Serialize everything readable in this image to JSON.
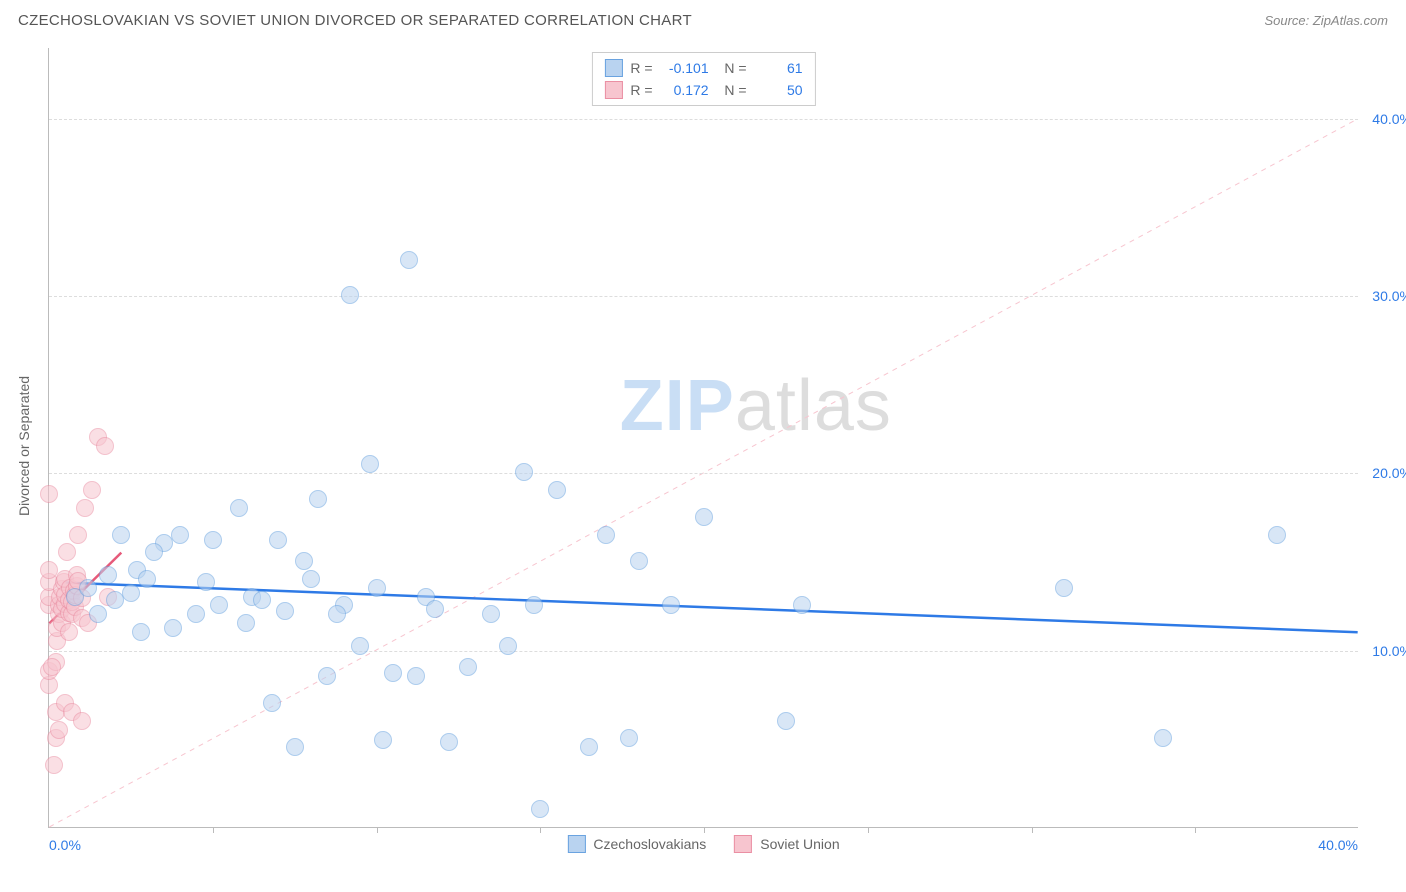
{
  "header": {
    "title": "CZECHOSLOVAKIAN VS SOVIET UNION DIVORCED OR SEPARATED CORRELATION CHART",
    "source": "Source: ZipAtlas.com"
  },
  "chart": {
    "type": "scatter",
    "ylabel": "Divorced or Separated",
    "xlim": [
      0,
      40
    ],
    "ylim": [
      0,
      44
    ],
    "xtick_left_label": "0.0%",
    "xtick_right_label": "40.0%",
    "xtick_marks_at": [
      5,
      10,
      15,
      20,
      25,
      30,
      35
    ],
    "ygrid": [
      {
        "value": 10,
        "label": "10.0%"
      },
      {
        "value": 20,
        "label": "20.0%"
      },
      {
        "value": 30,
        "label": "30.0%"
      },
      {
        "value": 40,
        "label": "40.0%"
      }
    ],
    "grid_color": "#dddddd",
    "axis_color": "#bbbbbb",
    "tick_label_color": "#2e7ae6",
    "ylabel_color": "#666666",
    "background_color": "#ffffff",
    "marker_radius": 9,
    "marker_opacity": 0.55,
    "watermark": {
      "zip": "ZIP",
      "atlas": "atlas",
      "zip_color": "#c9def5",
      "atlas_color": "#dddddd",
      "fontsize": 72
    },
    "series": [
      {
        "name": "Czechoslovakians",
        "legend_label": "Czechoslovakians",
        "color_fill": "#b9d3f0",
        "color_stroke": "#6aa3e0",
        "R": "-0.101",
        "N": "61",
        "regression": {
          "x1": 0.5,
          "y1": 13.8,
          "x2": 40,
          "y2": 11.0,
          "stroke": "#2e7ae6",
          "width": 2.5,
          "dash": "none"
        },
        "identity_line": {
          "x1": 0,
          "y1": 0,
          "x2": 40,
          "y2": 40,
          "stroke": "#f7c5cf",
          "width": 1,
          "dash": "5,5"
        },
        "data": [
          [
            0.8,
            13.0
          ],
          [
            1.2,
            13.5
          ],
          [
            1.5,
            12.0
          ],
          [
            1.8,
            14.2
          ],
          [
            2.0,
            12.8
          ],
          [
            2.2,
            16.5
          ],
          [
            2.5,
            13.2
          ],
          [
            2.7,
            14.5
          ],
          [
            2.8,
            11.0
          ],
          [
            3.5,
            16.0
          ],
          [
            3.8,
            11.2
          ],
          [
            4.0,
            16.5
          ],
          [
            4.5,
            12.0
          ],
          [
            5.0,
            16.2
          ],
          [
            5.2,
            12.5
          ],
          [
            5.8,
            18.0
          ],
          [
            6.0,
            11.5
          ],
          [
            6.2,
            13.0
          ],
          [
            6.5,
            12.8
          ],
          [
            7.0,
            16.2
          ],
          [
            7.2,
            12.2
          ],
          [
            7.5,
            4.5
          ],
          [
            8.0,
            14.0
          ],
          [
            8.2,
            18.5
          ],
          [
            8.5,
            8.5
          ],
          [
            9.0,
            12.5
          ],
          [
            9.2,
            30.0
          ],
          [
            9.5,
            10.2
          ],
          [
            9.8,
            20.5
          ],
          [
            10.0,
            13.5
          ],
          [
            10.2,
            4.9
          ],
          [
            10.5,
            8.7
          ],
          [
            11.0,
            32.0
          ],
          [
            11.2,
            8.5
          ],
          [
            11.5,
            13.0
          ],
          [
            11.8,
            12.3
          ],
          [
            12.2,
            4.8
          ],
          [
            14.0,
            10.2
          ],
          [
            14.5,
            20.0
          ],
          [
            14.8,
            12.5
          ],
          [
            15.0,
            1.0
          ],
          [
            15.5,
            19.0
          ],
          [
            16.5,
            4.5
          ],
          [
            17.0,
            16.5
          ],
          [
            17.7,
            5.0
          ],
          [
            18.0,
            15.0
          ],
          [
            19.0,
            12.5
          ],
          [
            20.0,
            17.5
          ],
          [
            22.5,
            6.0
          ],
          [
            23.0,
            12.5
          ],
          [
            31.0,
            13.5
          ],
          [
            34.0,
            5.0
          ],
          [
            37.5,
            16.5
          ],
          [
            3.0,
            14.0
          ],
          [
            3.2,
            15.5
          ],
          [
            4.8,
            13.8
          ],
          [
            6.8,
            7.0
          ],
          [
            7.8,
            15.0
          ],
          [
            12.8,
            9.0
          ],
          [
            13.5,
            12.0
          ],
          [
            8.8,
            12.0
          ]
        ]
      },
      {
        "name": "Soviet Union",
        "legend_label": "Soviet Union",
        "color_fill": "#f7c5cf",
        "color_stroke": "#ea8fa3",
        "R": "0.172",
        "N": "50",
        "regression": {
          "x1": 0,
          "y1": 11.5,
          "x2": 2.2,
          "y2": 15.5,
          "stroke": "#e65a7a",
          "width": 2.5,
          "dash": "none"
        },
        "data": [
          [
            0.0,
            8.0
          ],
          [
            0.0,
            8.8
          ],
          [
            0.0,
            12.5
          ],
          [
            0.0,
            13.0
          ],
          [
            0.0,
            13.8
          ],
          [
            0.0,
            14.5
          ],
          [
            0.0,
            18.8
          ],
          [
            0.15,
            3.5
          ],
          [
            0.2,
            5.0
          ],
          [
            0.2,
            6.5
          ],
          [
            0.2,
            9.3
          ],
          [
            0.25,
            10.5
          ],
          [
            0.25,
            11.2
          ],
          [
            0.3,
            5.5
          ],
          [
            0.3,
            12.0
          ],
          [
            0.3,
            12.5
          ],
          [
            0.35,
            13.0
          ],
          [
            0.4,
            11.5
          ],
          [
            0.4,
            12.3
          ],
          [
            0.4,
            13.4
          ],
          [
            0.45,
            13.8
          ],
          [
            0.5,
            7.0
          ],
          [
            0.5,
            12.6
          ],
          [
            0.5,
            13.1
          ],
          [
            0.5,
            14.0
          ],
          [
            0.55,
            15.5
          ],
          [
            0.6,
            11.0
          ],
          [
            0.6,
            12.1
          ],
          [
            0.6,
            12.8
          ],
          [
            0.65,
            13.5
          ],
          [
            0.7,
            6.5
          ],
          [
            0.7,
            12.0
          ],
          [
            0.7,
            12.7
          ],
          [
            0.75,
            13.3
          ],
          [
            0.8,
            12.4
          ],
          [
            0.8,
            13.1
          ],
          [
            0.85,
            13.6
          ],
          [
            0.85,
            14.2
          ],
          [
            0.9,
            13.9
          ],
          [
            0.9,
            16.5
          ],
          [
            1.0,
            6.0
          ],
          [
            1.0,
            11.8
          ],
          [
            1.0,
            12.9
          ],
          [
            1.1,
            18.0
          ],
          [
            1.2,
            11.5
          ],
          [
            1.3,
            19.0
          ],
          [
            1.5,
            22.0
          ],
          [
            1.7,
            21.5
          ],
          [
            1.8,
            13.0
          ],
          [
            0.1,
            9.0
          ]
        ]
      }
    ]
  },
  "legend": {
    "items": [
      {
        "label": "Czechoslovakians",
        "fill": "#b9d3f0",
        "stroke": "#6aa3e0"
      },
      {
        "label": "Soviet Union",
        "fill": "#f7c5cf",
        "stroke": "#ea8fa3"
      }
    ]
  }
}
